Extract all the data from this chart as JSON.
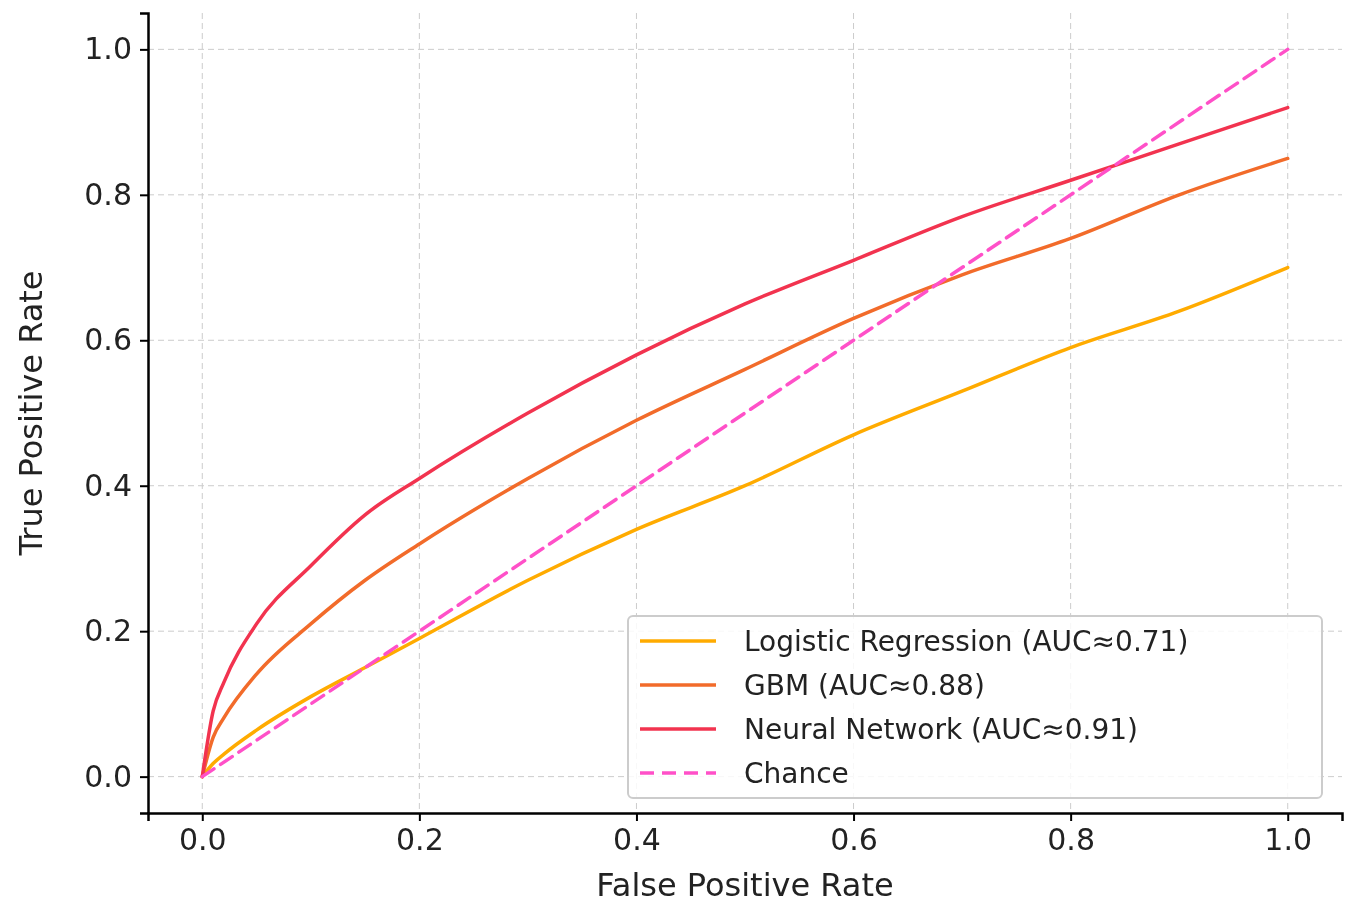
{
  "chart_data": {
    "type": "line",
    "xlabel": "False Positive Rate",
    "ylabel": "True Positive Rate",
    "xlim": [
      -0.05,
      1.05
    ],
    "ylim": [
      -0.05,
      1.05
    ],
    "xticks": [
      {
        "value": 0,
        "label": "0.0"
      },
      0.2,
      0.4,
      0.6,
      0.8,
      {
        "value": 1,
        "label": "1.0"
      }
    ],
    "yticks": [
      {
        "value": 0,
        "label": "0.0"
      },
      0.2,
      0.4,
      0.6,
      0.8,
      {
        "value": 1,
        "label": "1.0"
      }
    ],
    "grid": true,
    "legend": "bottom right",
    "line_style": "solid",
    "x": [
      0,
      0.01,
      0.02,
      0.05,
      0.1,
      0.15,
      0.2,
      0.3,
      0.4,
      0.5,
      0.6,
      0.7,
      0.8,
      0.9,
      1
    ],
    "series": [
      {
        "name": "Logistic Regression (AUC≈0.71)",
        "color": "#ffab00",
        "values": [
          0,
          0.018,
          0.031,
          0.064,
          0.11,
          0.15,
          0.19,
          0.27,
          0.34,
          0.4,
          0.47,
          0.53,
          0.59,
          0.64,
          0.7
        ]
      },
      {
        "name": "GBM (AUC≈0.88)",
        "color": "#f26b2a",
        "values": [
          0,
          0.054,
          0.081,
          0.141,
          0.21,
          0.27,
          0.32,
          0.41,
          0.49,
          0.56,
          0.63,
          0.69,
          0.74,
          0.8,
          0.85
        ]
      },
      {
        "name": "Neural Network (AUC≈0.91)",
        "color": "#f2334f",
        "values": [
          0,
          0.09,
          0.13,
          0.21,
          0.29,
          0.36,
          0.41,
          0.5,
          0.58,
          0.65,
          0.71,
          0.77,
          0.82,
          0.87,
          0.92
        ]
      },
      {
        "name": "Chance",
        "color": "#ff50c8",
        "line_style": "dashed",
        "x": [
          0,
          1
        ],
        "values": [
          0,
          1
        ]
      }
    ]
  }
}
